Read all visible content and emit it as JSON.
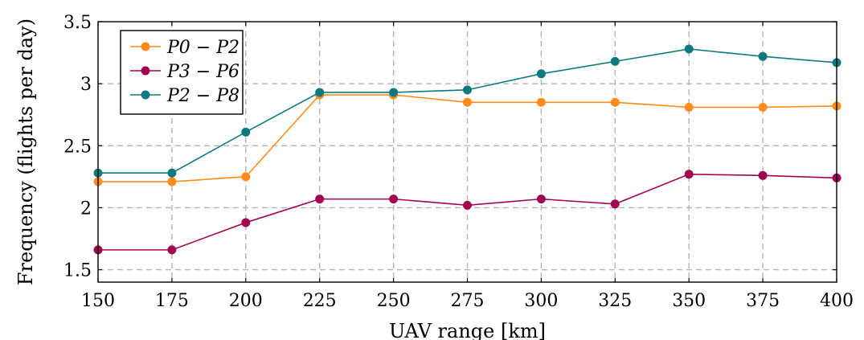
{
  "chart_data": {
    "type": "line",
    "xlabel": "UAV range [km]",
    "ylabel": "Frequency (flights per day)",
    "x": [
      150,
      175,
      200,
      225,
      250,
      275,
      300,
      325,
      350,
      375,
      400
    ],
    "xlim": [
      150,
      400
    ],
    "ylim": [
      1.4,
      3.5
    ],
    "xticks": [
      150,
      175,
      200,
      225,
      250,
      275,
      300,
      325,
      350,
      375,
      400
    ],
    "yticks": [
      1.5,
      2,
      2.5,
      3,
      3.5
    ],
    "grid": true,
    "legend_position": "top-left",
    "series": [
      {
        "name": "P0 − P2",
        "color": "#ff8c1a",
        "values": [
          2.21,
          2.21,
          2.25,
          2.91,
          2.91,
          2.85,
          2.85,
          2.85,
          2.81,
          2.81,
          2.82
        ]
      },
      {
        "name": "P3 − P6",
        "color": "#a0064f",
        "values": [
          1.66,
          1.66,
          1.88,
          2.07,
          2.07,
          2.02,
          2.07,
          2.03,
          2.27,
          2.26,
          2.24
        ]
      },
      {
        "name": "P2 − P8",
        "color": "#0f7a7e",
        "values": [
          2.28,
          2.28,
          2.61,
          2.93,
          2.93,
          2.95,
          3.08,
          3.18,
          3.28,
          3.22,
          3.17
        ]
      }
    ]
  }
}
